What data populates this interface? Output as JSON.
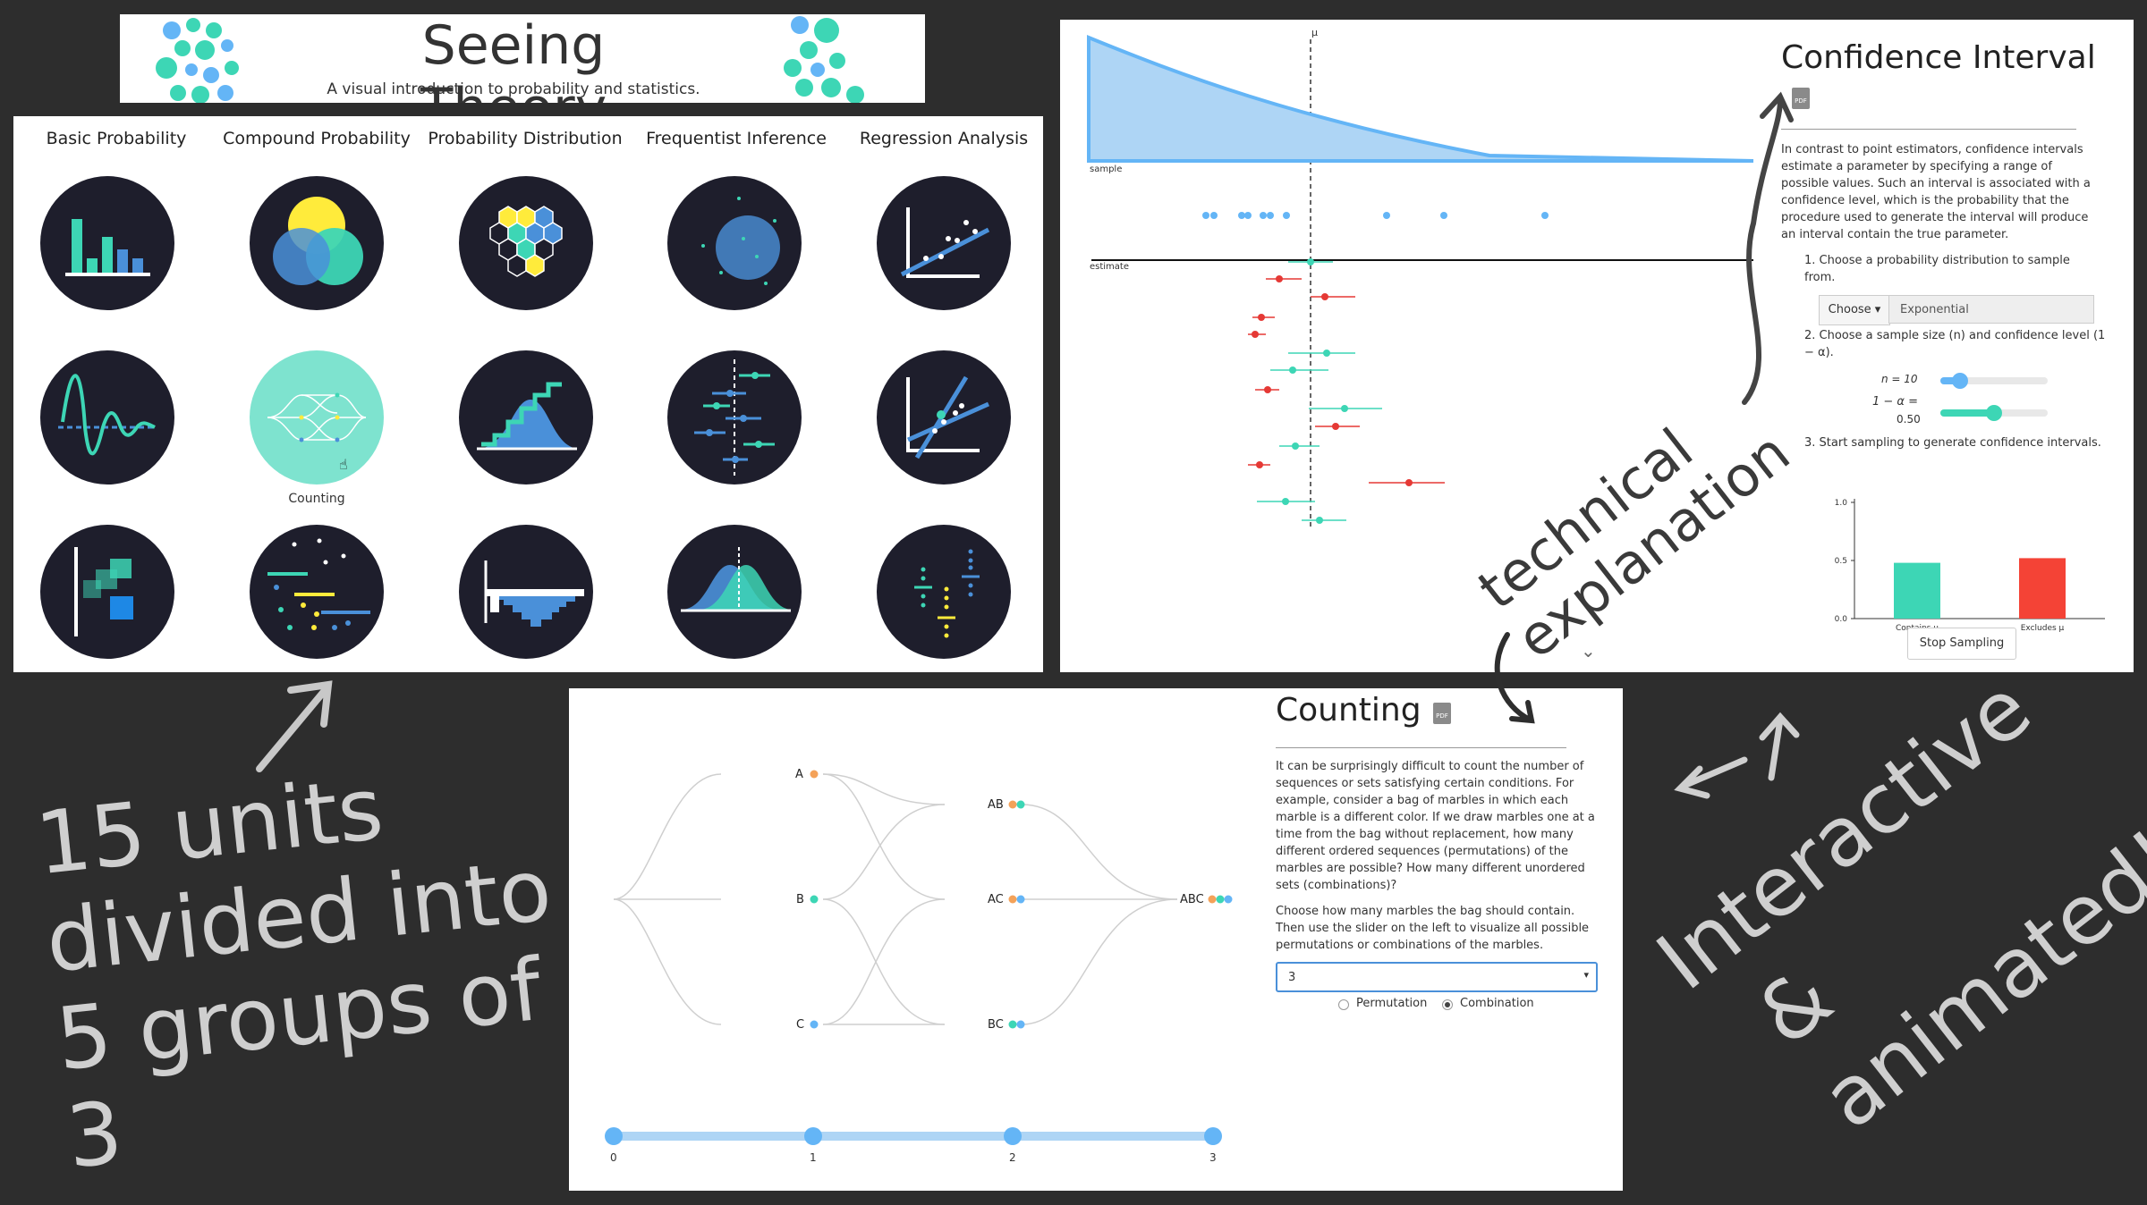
{
  "header": {
    "title": "Seeing Theory",
    "subtitle": "A visual introduction to probability and statistics."
  },
  "grid": {
    "categories": [
      "Basic Probability",
      "Compound Probability",
      "Probability Distribution",
      "Frequentist Inference",
      "Regression Analysis"
    ],
    "hover_label": "Counting"
  },
  "ci": {
    "mu_label": "μ",
    "sample_label": "sample",
    "estimate_label": "estimate",
    "title": "Confidence Interval",
    "pdf_icon": "pdf-icon",
    "description": "In contrast to point estimators, confidence intervals estimate a parameter by specifying a range of possible values. Such an interval is associated with a confidence level, which is the probability that the procedure used to generate the interval will produce an interval contain the true parameter.",
    "step1": "1. Choose a probability distribution to sample from.",
    "choose_label": "Choose ▾",
    "distribution_value": "Exponential",
    "step2": "2. Choose a sample size (n) and confidence level (1 − α).",
    "n_label": "n = 10",
    "alpha_label": "1 − α =",
    "alpha_value": "0.50",
    "n_fraction": 0.18,
    "alpha_fraction": 0.5,
    "step3": "3. Start sampling to generate confidence intervals.",
    "stop_button": "Stop Sampling",
    "bar_chart": {
      "type": "bar",
      "categories": [
        "Contains μ",
        "Excludes μ"
      ],
      "values": [
        0.48,
        0.52
      ],
      "ylim": [
        0,
        1
      ],
      "yticks": [
        "1.0",
        "0.5",
        "0.0"
      ],
      "colors": [
        "#3dd6b5",
        "#f44336"
      ]
    }
  },
  "counting": {
    "title": "Counting",
    "pdf_icon": "pdf-icon",
    "paragraph1": "It can be surprisingly difficult to count the number of sequences or sets satisfying certain conditions. For example, consider a bag of marbles in which each marble is a different color. If we draw marbles one at a time from the bag without replacement, how many different ordered sequences (permutations) of the marbles are possible? How many different unordered sets (combinations)?",
    "paragraph2": "Choose how many marbles the bag should contain. Then use the slider on the left to visualize all possible permutations or combinations of the marbles.",
    "select_value": "3",
    "option_permutation": "Permutation",
    "option_combination": "Combination",
    "selected_mode": "Combination",
    "nodes": {
      "A": "A",
      "B": "B",
      "C": "C",
      "AB": "AB",
      "AC": "AC",
      "BC": "BC",
      "ABC": "ABC"
    },
    "slider_ticks": [
      "0",
      "1",
      "2",
      "3"
    ]
  },
  "annotations": {
    "units": "15 units divided into 5 groups of 3",
    "units_lines": [
      "15 units",
      "divided into",
      "5 groups of 3"
    ],
    "technical": "technical explanation",
    "technical_lines": [
      "technical",
      "explanation"
    ],
    "interactive": "Interactive & animated!",
    "interactive_lines": [
      "Interactive",
      "& animated!"
    ]
  },
  "colors": {
    "teal": "#3dd6b5",
    "blue": "#4a90d9",
    "light_blue": "#64b5f6",
    "yellow": "#ffeb3b",
    "red": "#e53935",
    "orange": "#f4a259",
    "circle_bg": "#1e1e2c",
    "page_bg": "#2d2d2d"
  }
}
